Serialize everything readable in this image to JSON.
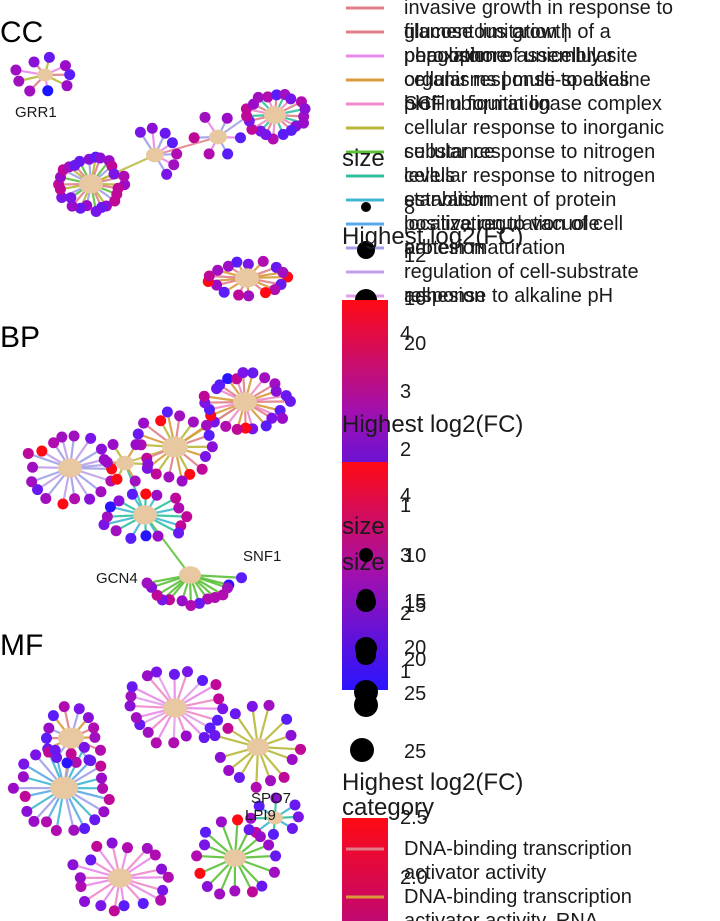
{
  "panels": [
    {
      "label": "CC",
      "gene_labels": [
        "GRR1"
      ],
      "category_legend": [
        {
          "name": "invasive growth in response to glucose limitation | peroxisome",
          "color": "#e07f8a"
        },
        {
          "name": "filamentous growth of a population of unicellular organisms | multi-species biofilm formation",
          "color": "#e07f8a"
        },
        {
          "name": "phagophore assembly site",
          "color": "#e88ae8"
        },
        {
          "name": "cellular response to alkaline pH",
          "color": "#d89a3a"
        },
        {
          "name": "SCF ubiquitin ligase complex",
          "color": "#f08ac8"
        },
        {
          "name": "cellular response to inorganic substance",
          "color": "#b8b83a"
        },
        {
          "name": "cellular response to nitrogen levels",
          "color": "#5cc03a"
        },
        {
          "name": "cellular response to nitrogen starvation",
          "color": "#30c0a0"
        },
        {
          "name": "establishment of protein localization to vacuole",
          "color": "#40b8d0"
        },
        {
          "name": "positive regulation of cell adhesion",
          "color": "#5aa8e8"
        },
        {
          "name": "protein maturation",
          "color": "#a0a0e8"
        },
        {
          "name": "regulation of cell-substrate adhesion",
          "color": "#c0a0e8"
        },
        {
          "name": "response to alkaline pH",
          "color": "#e0a0e8"
        }
      ],
      "size_title": "size",
      "size_ticks": [
        "8",
        "12",
        "16",
        "20"
      ],
      "fc_title": "Highest log2(FC)",
      "fc_ticks": [
        "4",
        "3",
        "2",
        "1"
      ]
    },
    {
      "label": "BP",
      "gene_labels": [
        "SNF1",
        "GCN4"
      ],
      "size_title": "size",
      "size_ticks": [
        "10",
        "15",
        "20",
        "25"
      ],
      "fc_title": "Highest log2(FC)",
      "fc_ticks": [
        "4",
        "3",
        "2",
        "1"
      ]
    },
    {
      "label": "MF",
      "gene_labels": [
        "SPO7",
        "LPI9"
      ],
      "size_title": "size",
      "size_ticks": [
        "15",
        "20",
        "25"
      ],
      "fc_title": "Highest log2(FC)",
      "fc_ticks": [
        "2.5",
        "2.0"
      ],
      "category_title": "category",
      "category_legend": [
        {
          "name": "DNA-binding transcription activator activity",
          "color": "#e07f8a"
        },
        {
          "name": "DNA-binding transcription activator activity, RNA",
          "color": "#d89a3a"
        }
      ]
    }
  ],
  "colors": {
    "category_node": "#e8c8a0",
    "fc_high": "#ff0a14",
    "fc_mid": "#a010b0",
    "fc_low": "#2a14ff"
  }
}
